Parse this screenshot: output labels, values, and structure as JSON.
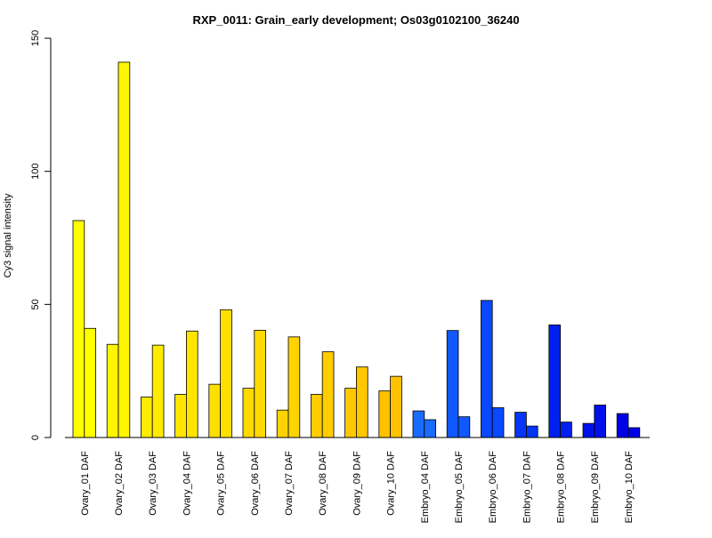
{
  "chart_data": {
    "type": "bar",
    "title": "RXP_0011: Grain_early development; Os03g0102100_36240",
    "xlabel": "",
    "ylabel": "Cy3 signal intensity",
    "ylim": [
      0,
      150
    ],
    "yticks": [
      0,
      50,
      100,
      150
    ],
    "grid": false,
    "legend": "none",
    "categories": [
      "Ovary_01 DAF",
      "Ovary_02 DAF",
      "Ovary_03 DAF",
      "Ovary_04 DAF",
      "Ovary_05 DAF",
      "Ovary_06 DAF",
      "Ovary_07 DAF",
      "Ovary_08 DAF",
      "Ovary_09 DAF",
      "Ovary_10 DAF",
      "Embryo_04 DAF",
      "Embryo_05 DAF",
      "Embryo_06 DAF",
      "Embryo_07 DAF",
      "Embryo_08 DAF",
      "Embryo_09 DAF",
      "Embryo_10 DAF"
    ],
    "series": [
      {
        "values": [
          81.5,
          35,
          15.2,
          16.2,
          20,
          18.5,
          10.3,
          16.2,
          18.5,
          17.5,
          10,
          40.2,
          51.5,
          9.5,
          42.3,
          5.3,
          9
        ]
      },
      {
        "values": [
          41,
          141,
          34.7,
          40,
          48,
          40.3,
          37.8,
          32.2,
          26.5,
          23,
          6.7,
          7.8,
          11.2,
          4.3,
          5.8,
          12.2,
          3.7
        ]
      }
    ],
    "bar_colors": [
      "#ffff00",
      "#fff500",
      "#ffeb00",
      "#ffe500",
      "#ffdf00",
      "#ffd900",
      "#ffd300",
      "#ffcd00",
      "#ffc700",
      "#ffc100",
      "#1a6bff",
      "#1058ff",
      "#0a48ff",
      "#0535f7",
      "#0020ef",
      "#0010eb",
      "#0000e6"
    ]
  }
}
